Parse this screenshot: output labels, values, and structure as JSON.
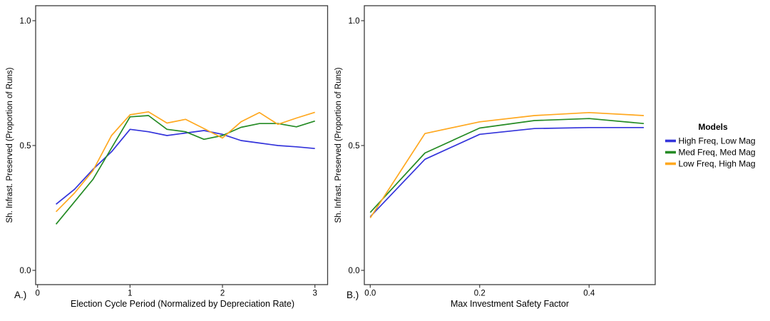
{
  "legend": {
    "title": "Models",
    "items": [
      {
        "label": "High Freq, Low Mag",
        "color": "#3434db"
      },
      {
        "label": "Med Freq, Med Mag",
        "color": "#258b25"
      },
      {
        "label": "Low Freq, High Mag",
        "color": "#ffa81f"
      }
    ]
  },
  "chart_data": [
    {
      "type": "line",
      "panel_label": "A.)",
      "title": "",
      "xlabel": "Election Cycle Period (Normalized by Depreciation Rate)",
      "ylabel": "Sh. Infrast. Preserved (Proportion of Runs)",
      "xlim": [
        0,
        3.15
      ],
      "ylim": [
        0,
        1.06
      ],
      "grid": false,
      "legend_position": "right",
      "xticks": [
        {
          "v": 0,
          "label": "0"
        },
        {
          "v": 1,
          "label": "1"
        },
        {
          "v": 2,
          "label": "2"
        },
        {
          "v": 3,
          "label": "3"
        }
      ],
      "yticks": [
        {
          "v": 0.0,
          "label": "0.0"
        },
        {
          "v": 0.5,
          "label": "0.5"
        },
        {
          "v": 1.0,
          "label": "1.0"
        }
      ],
      "x": [
        0.2,
        0.4,
        0.6,
        0.8,
        1.0,
        1.2,
        1.4,
        1.6,
        1.8,
        2.0,
        2.2,
        2.4,
        2.6,
        2.8,
        3.0
      ],
      "series": [
        {
          "name": "High Freq, Low Mag",
          "color": "#3434db",
          "values": [
            0.265,
            0.325,
            0.405,
            0.475,
            0.565,
            0.555,
            0.54,
            0.55,
            0.56,
            0.545,
            0.52,
            0.51,
            0.5,
            0.495,
            0.488
          ]
        },
        {
          "name": "Med Freq, Med Mag",
          "color": "#258b25",
          "values": [
            0.185,
            0.275,
            0.365,
            0.49,
            0.615,
            0.62,
            0.565,
            0.555,
            0.525,
            0.54,
            0.573,
            0.588,
            0.588,
            0.575,
            0.598
          ]
        },
        {
          "name": "Low Freq, High Mag",
          "color": "#ffa81f",
          "values": [
            0.235,
            0.31,
            0.4,
            0.54,
            0.623,
            0.635,
            0.59,
            0.605,
            0.568,
            0.53,
            0.595,
            0.632,
            0.585,
            0.61,
            0.633
          ]
        }
      ]
    },
    {
      "type": "line",
      "panel_label": "B.)",
      "title": "",
      "xlabel": "Max Investment Safety Factor",
      "ylabel": "Sh. Infrast. Preserved (Proportion of Runs)",
      "xlim": [
        0,
        0.52
      ],
      "ylim": [
        0,
        1.06
      ],
      "grid": false,
      "legend_position": "right",
      "xticks": [
        {
          "v": 0.0,
          "label": "0.0"
        },
        {
          "v": 0.2,
          "label": "0.2"
        },
        {
          "v": 0.4,
          "label": "0.4"
        }
      ],
      "yticks": [
        {
          "v": 0.0,
          "label": "0.0"
        },
        {
          "v": 0.5,
          "label": "0.5"
        },
        {
          "v": 1.0,
          "label": "1.0"
        }
      ],
      "x": [
        0.0,
        0.1,
        0.2,
        0.3,
        0.4,
        0.5
      ],
      "series": [
        {
          "name": "High Freq, Low Mag",
          "color": "#3434db",
          "values": [
            0.215,
            0.445,
            0.545,
            0.568,
            0.572,
            0.572
          ]
        },
        {
          "name": "Med Freq, Med Mag",
          "color": "#258b25",
          "values": [
            0.232,
            0.47,
            0.57,
            0.6,
            0.608,
            0.588
          ]
        },
        {
          "name": "Low Freq, High Mag",
          "color": "#ffa81f",
          "values": [
            0.21,
            0.548,
            0.595,
            0.62,
            0.632,
            0.62
          ]
        }
      ]
    }
  ]
}
